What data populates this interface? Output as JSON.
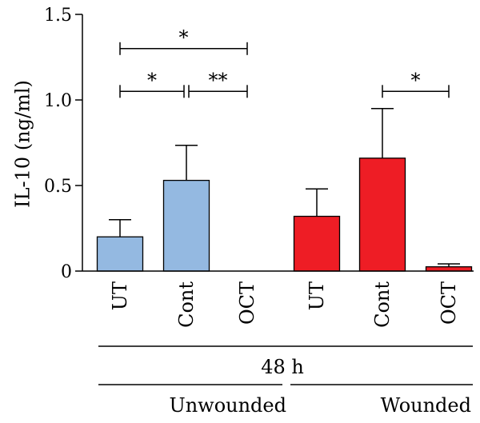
{
  "chart_data": {
    "type": "bar",
    "ylabel": "IL-10 (ng/ml)",
    "ylim": [
      0,
      1.5
    ],
    "yticks": [
      {
        "value": 0,
        "label": "0"
      },
      {
        "value": 0.5,
        "label": "0.5"
      },
      {
        "value": 1.0,
        "label": "1.0"
      },
      {
        "value": 1.5,
        "label": "1.5"
      }
    ],
    "categories": [
      "UT",
      "Cont",
      "OCT",
      "UT",
      "Cont",
      "OCT"
    ],
    "values": [
      0.2,
      0.53,
      0.0,
      0.32,
      0.66,
      0.025
    ],
    "errors": [
      0.1,
      0.205,
      0.0,
      0.16,
      0.29,
      0.017
    ],
    "groups": [
      {
        "label": "Unwounded",
        "color": "#94b9e1",
        "indices": [
          0,
          1,
          2
        ]
      },
      {
        "label": "Wounded",
        "color": "#ee1d25",
        "indices": [
          3,
          4,
          5
        ]
      }
    ],
    "time_label": "48 h",
    "significance": [
      {
        "from": 0,
        "to": 2,
        "label": "*",
        "level": 1.3
      },
      {
        "from": 0,
        "to": 1,
        "label": "*",
        "level": 1.05
      },
      {
        "from": 1,
        "to": 2,
        "label": "**",
        "level": 1.05
      },
      {
        "from": 4,
        "to": 5,
        "label": "*",
        "level": 1.05
      }
    ]
  }
}
